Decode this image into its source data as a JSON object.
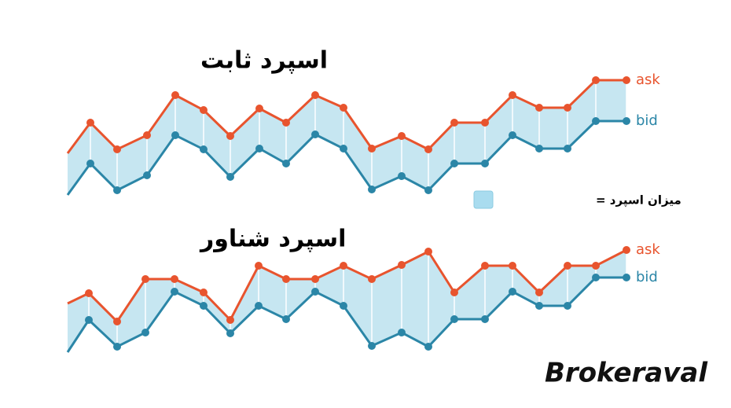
{
  "chart_data": [
    {
      "type": "line",
      "title": "اسپرد ثابت",
      "legend_label": "میزان اسپرد =",
      "fill_color": "#c6e6f1",
      "x": [
        0,
        29,
        63,
        101,
        137,
        173,
        207,
        244,
        278,
        315,
        351,
        387,
        425,
        459,
        492,
        531,
        566,
        600,
        636,
        672,
        711
      ],
      "series": [
        {
          "name": "ask",
          "color": "#e8542e",
          "values": [
            65,
            104,
            70,
            88,
            139,
            120,
            87,
            122,
            104,
            139,
            123,
            71,
            87,
            70,
            104,
            104,
            139,
            123,
            123,
            158,
            158
          ]
        },
        {
          "name": "bid",
          "color": "#2b86a7",
          "values": [
            12,
            52,
            18,
            37,
            88,
            70,
            35,
            71,
            52,
            89,
            71,
            19,
            36,
            18,
            52,
            52,
            88,
            71,
            71,
            106,
            106
          ]
        }
      ]
    },
    {
      "type": "line",
      "title": "اسپرد شناور",
      "fill_color": "#c6e6f1",
      "x": [
        0,
        27,
        63,
        99,
        136,
        173,
        207,
        243,
        278,
        315,
        351,
        387,
        425,
        459,
        492,
        531,
        566,
        600,
        636,
        672,
        711
      ],
      "series": [
        {
          "name": "ask",
          "color": "#e8542e",
          "values": [
            74,
            87,
            51,
            105,
            105,
            88,
            53,
            122,
            105,
            105,
            122,
            105,
            123,
            140,
            88,
            122,
            122,
            88,
            122,
            122,
            142
          ]
        },
        {
          "name": "bid",
          "color": "#2b86a7",
          "values": [
            12,
            53,
            19,
            37,
            89,
            71,
            36,
            71,
            54,
            89,
            71,
            20,
            37,
            19,
            54,
            54,
            89,
            71,
            71,
            107,
            107
          ]
        }
      ]
    }
  ],
  "brand": "Brokeraval"
}
